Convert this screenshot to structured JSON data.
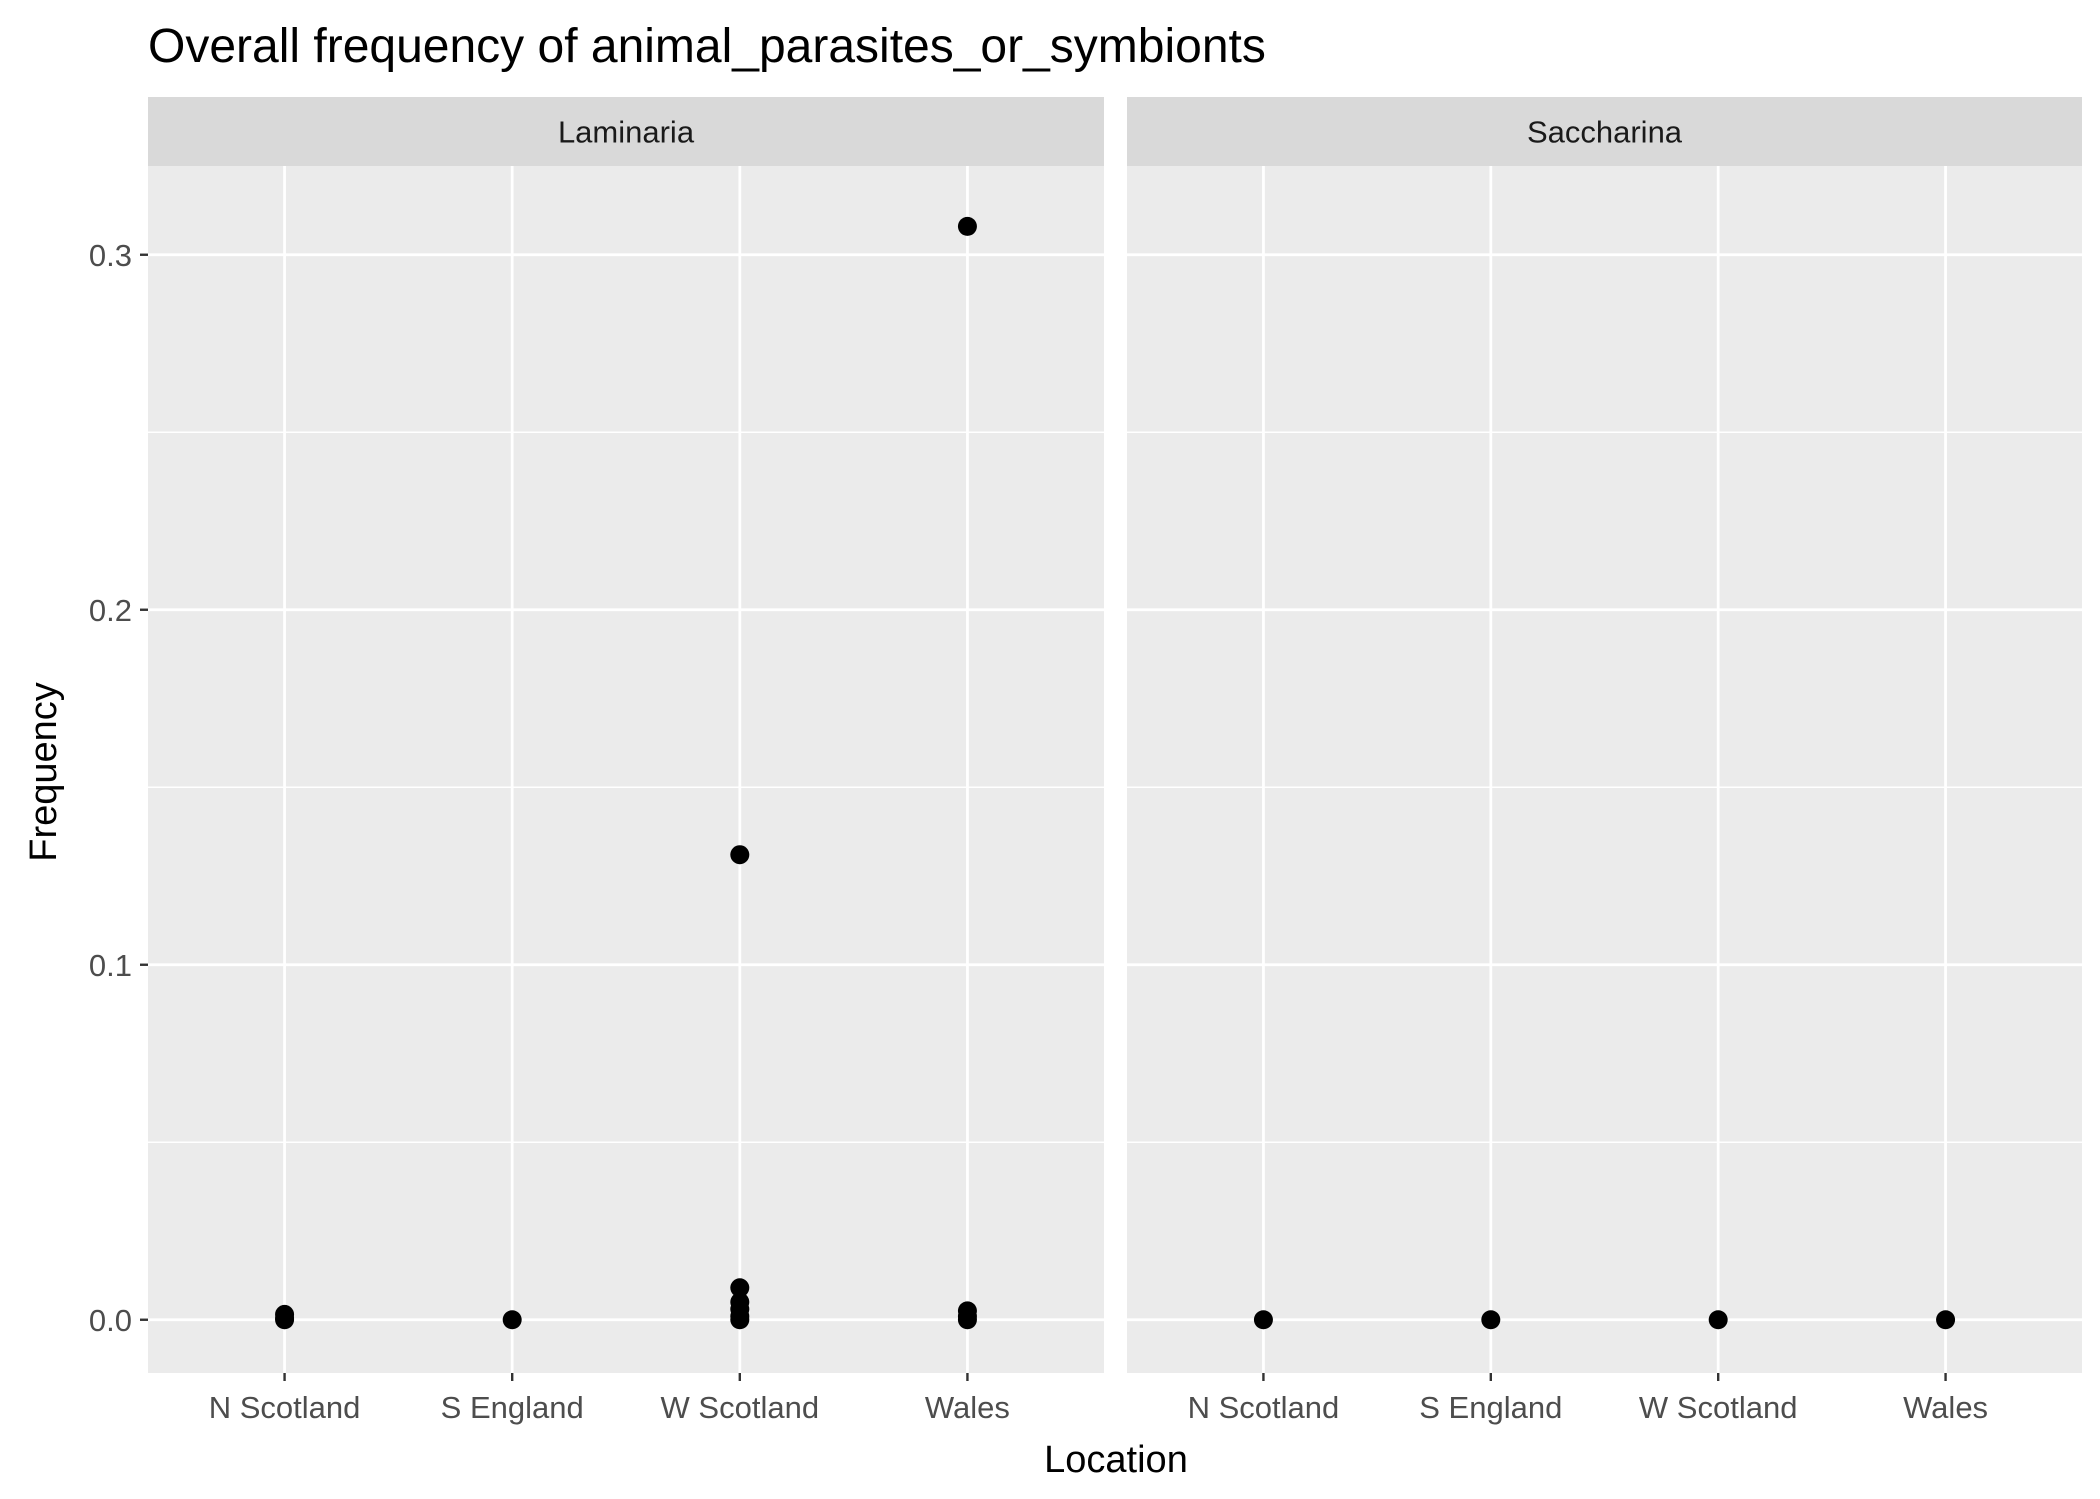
{
  "chart_data": {
    "type": "scatter",
    "title": "Overall frequency of animal_parasites_or_symbionts",
    "xlabel": "Location",
    "ylabel": "Frequency",
    "categories": [
      "N Scotland",
      "S England",
      "W Scotland",
      "Wales"
    ],
    "ylim": [
      -0.015,
      0.325
    ],
    "yticks": [
      0.0,
      0.1,
      0.2,
      0.3
    ],
    "ytick_labels": [
      "0.0",
      "0.1",
      "0.2",
      "0.3"
    ],
    "grid": true,
    "panels": [
      {
        "name": "Laminaria",
        "points": [
          {
            "x": "N Scotland",
            "y": 0.0
          },
          {
            "x": "N Scotland",
            "y": 0.0005
          },
          {
            "x": "N Scotland",
            "y": 0.0015
          },
          {
            "x": "S England",
            "y": 0.0
          },
          {
            "x": "W Scotland",
            "y": 0.0
          },
          {
            "x": "W Scotland",
            "y": 0.001
          },
          {
            "x": "W Scotland",
            "y": 0.003
          },
          {
            "x": "W Scotland",
            "y": 0.005
          },
          {
            "x": "W Scotland",
            "y": 0.009
          },
          {
            "x": "W Scotland",
            "y": 0.131
          },
          {
            "x": "Wales",
            "y": 0.0
          },
          {
            "x": "Wales",
            "y": 0.001
          },
          {
            "x": "Wales",
            "y": 0.0025
          },
          {
            "x": "Wales",
            "y": 0.308
          }
        ]
      },
      {
        "name": "Saccharina",
        "points": [
          {
            "x": "N Scotland",
            "y": 0.0
          },
          {
            "x": "S England",
            "y": 0.0
          },
          {
            "x": "W Scotland",
            "y": 0.0
          },
          {
            "x": "Wales",
            "y": 0.0
          }
        ]
      }
    ],
    "colors": {
      "panel_background": "#ebebeb",
      "strip_background": "#d9d9d9",
      "grid": "#ffffff",
      "point": "#000000"
    }
  }
}
